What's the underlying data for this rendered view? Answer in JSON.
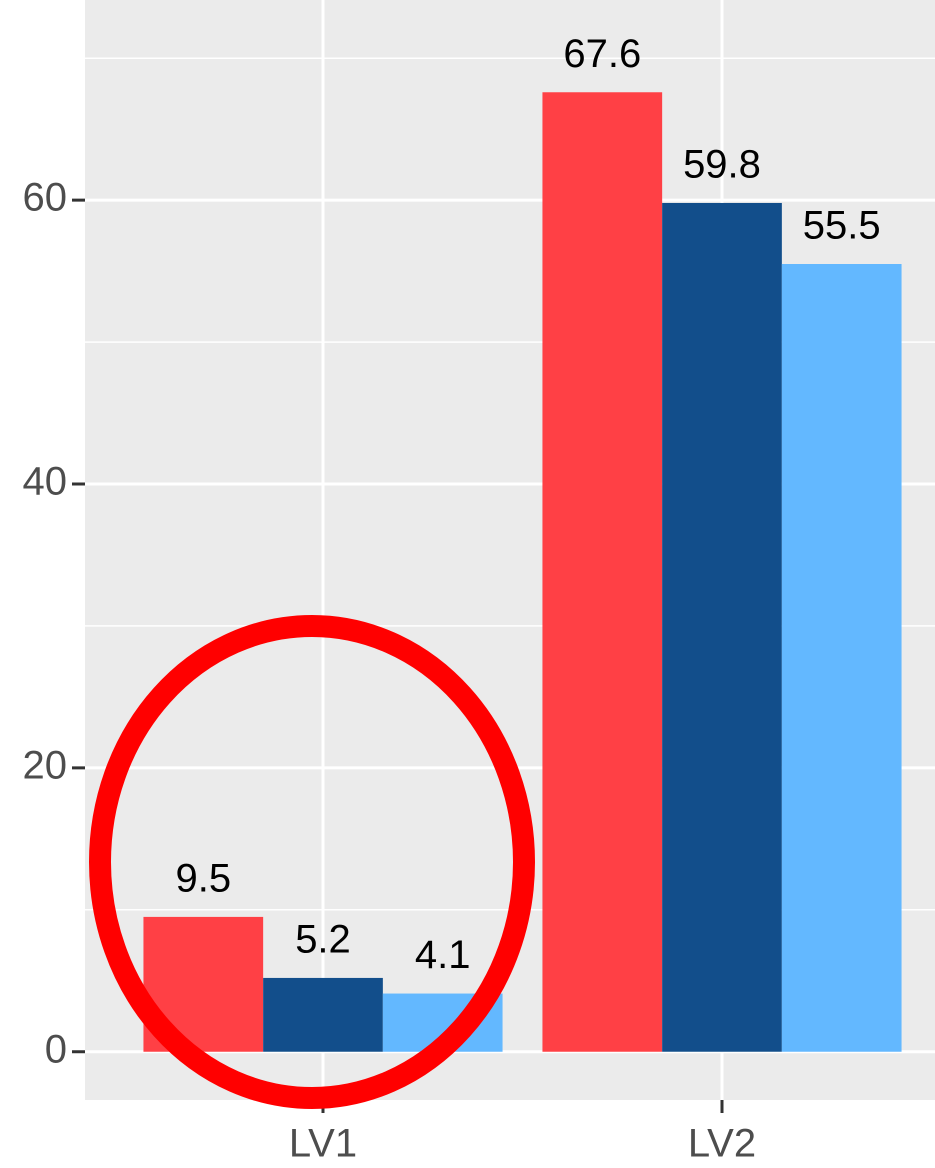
{
  "chart_data": {
    "type": "bar",
    "categories": [
      "LV1",
      "LV2"
    ],
    "series": [
      {
        "color": "#ff4045",
        "values": [
          9.5,
          67.6
        ]
      },
      {
        "color": "#124e8b",
        "values": [
          5.2,
          59.8
        ]
      },
      {
        "color": "#63b8ff",
        "values": [
          4.1,
          55.5
        ]
      }
    ],
    "ylim": [
      -3.4,
      74.1
    ],
    "yticks": [
      0,
      20,
      40,
      60
    ],
    "minor_yticks": [
      10,
      30,
      50,
      70
    ],
    "grid": true
  }
}
